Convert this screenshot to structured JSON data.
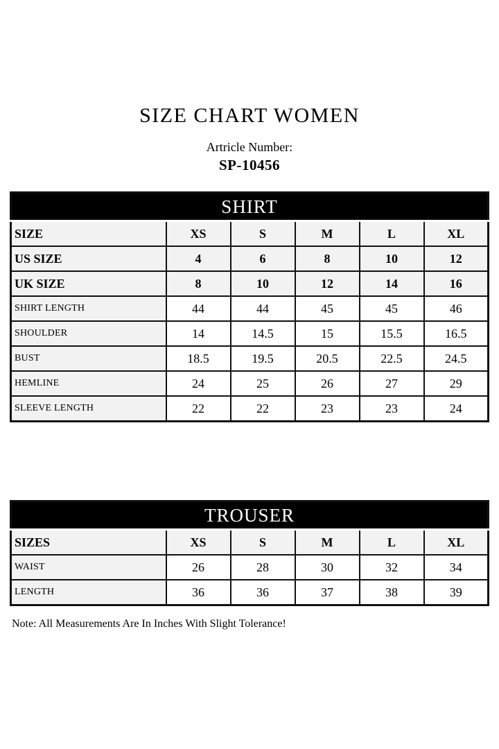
{
  "page": {
    "title": "SIZE CHART WOMEN",
    "article_label": "Artricle Number:",
    "article_number": "SP-10456",
    "note": "Note: All Measurements Are In Inches With Slight Tolerance!"
  },
  "shirt": {
    "title": "SHIRT",
    "header_rows": [
      {
        "label": "SIZE",
        "values": [
          "XS",
          "S",
          "M",
          "L",
          "XL"
        ]
      },
      {
        "label": "US SIZE",
        "values": [
          "4",
          "6",
          "8",
          "10",
          "12"
        ]
      },
      {
        "label": "UK SIZE",
        "values": [
          "8",
          "10",
          "12",
          "14",
          "16"
        ]
      }
    ],
    "data_rows": [
      {
        "label": "SHIRT LENGTH",
        "values": [
          "44",
          "44",
          "45",
          "45",
          "46"
        ]
      },
      {
        "label": "SHOULDER",
        "values": [
          "14",
          "14.5",
          "15",
          "15.5",
          "16.5"
        ]
      },
      {
        "label": "BUST",
        "values": [
          "18.5",
          "19.5",
          "20.5",
          "22.5",
          "24.5"
        ]
      },
      {
        "label": "HEMLINE",
        "values": [
          "24",
          "25",
          "26",
          "27",
          "29"
        ]
      },
      {
        "label": "SLEEVE LENGTH",
        "values": [
          "22",
          "22",
          "23",
          "23",
          "24"
        ]
      }
    ]
  },
  "trouser": {
    "title": "TROUSER",
    "header_rows": [
      {
        "label": "SIZES",
        "values": [
          "XS",
          "S",
          "M",
          "L",
          "XL"
        ]
      }
    ],
    "data_rows": [
      {
        "label": "WAIST",
        "values": [
          "26",
          "28",
          "30",
          "32",
          "34"
        ]
      },
      {
        "label": "LENGTH",
        "values": [
          "36",
          "36",
          "37",
          "38",
          "39"
        ]
      }
    ]
  },
  "colors": {
    "page_bg": "#ffffff",
    "band_bg": "#000000",
    "band_text": "#ffffff",
    "header_row_bg": "#f2f2f2",
    "border": "#111111"
  }
}
